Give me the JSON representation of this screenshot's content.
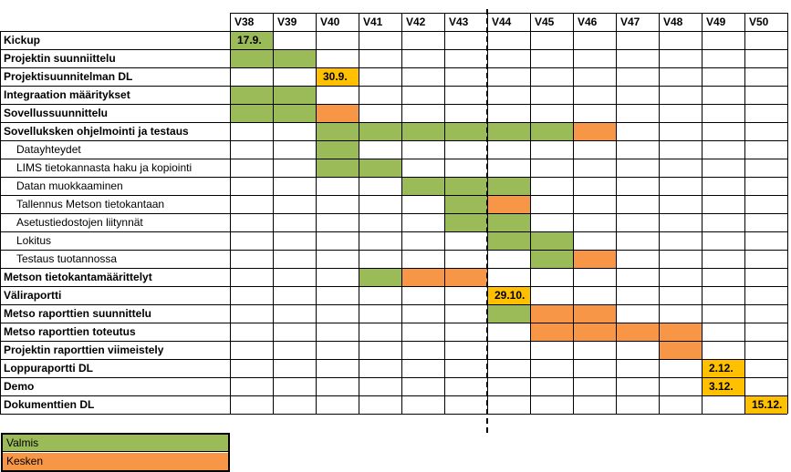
{
  "chart_data": {
    "type": "gantt",
    "weeks": [
      "V38",
      "V39",
      "V40",
      "V41",
      "V42",
      "V43",
      "V44",
      "V45",
      "V46",
      "V47",
      "V48",
      "V49",
      "V50"
    ],
    "tasks": [
      {
        "name": "Kickup",
        "bold": true,
        "done": [],
        "in_progress": [],
        "milestone": {
          "week": "V38",
          "label": "17.9.",
          "color": "#9bbb59"
        }
      },
      {
        "name": "Projektin suunniittelu",
        "bold": true,
        "done": [
          "V38",
          "V39"
        ],
        "in_progress": []
      },
      {
        "name": "Projektisuunnitelman DL",
        "bold": true,
        "done": [],
        "in_progress": [],
        "milestone": {
          "week": "V40",
          "label": "30.9.",
          "color": "#ffc000"
        }
      },
      {
        "name": "Integraation määritykset",
        "bold": true,
        "done": [
          "V38",
          "V39"
        ],
        "in_progress": []
      },
      {
        "name": "Sovellussuunnittelu",
        "bold": true,
        "done": [
          "V38",
          "V39"
        ],
        "in_progress": [
          "V40"
        ]
      },
      {
        "name": "Sovelluksken ohjelmointi ja testaus",
        "bold": true,
        "done": [
          "V40",
          "V41",
          "V42",
          "V43",
          "V44",
          "V45"
        ],
        "in_progress": [
          "V46"
        ]
      },
      {
        "name": "Datayhteydet",
        "bold": false,
        "done": [
          "V40"
        ],
        "in_progress": []
      },
      {
        "name": "LIMS tietokannasta haku ja kopiointi",
        "bold": false,
        "done": [
          "V40",
          "V41"
        ],
        "in_progress": []
      },
      {
        "name": "Datan muokkaaminen",
        "bold": false,
        "done": [
          "V42",
          "V43",
          "V44"
        ],
        "in_progress": []
      },
      {
        "name": "Tallennus Metson tietokantaan",
        "bold": false,
        "done": [
          "V43"
        ],
        "in_progress": [
          "V44"
        ]
      },
      {
        "name": "Asetustiedostojen liitynnät",
        "bold": false,
        "done": [
          "V43",
          "V44"
        ],
        "in_progress": []
      },
      {
        "name": "Lokitus",
        "bold": false,
        "done": [
          "V44",
          "V45"
        ],
        "in_progress": []
      },
      {
        "name": "Testaus tuotannossa",
        "bold": false,
        "done": [
          "V45"
        ],
        "in_progress": [
          "V46"
        ]
      },
      {
        "name": "Metson tietokantamäärittelyt",
        "bold": true,
        "done": [
          "V41"
        ],
        "in_progress": [
          "V42",
          "V43"
        ]
      },
      {
        "name": "Väliraportti",
        "bold": true,
        "done": [],
        "in_progress": [],
        "milestone": {
          "week": "V44",
          "label": "29.10.",
          "color": "#ffc000"
        }
      },
      {
        "name": "Metso raporttien suunnittelu",
        "bold": true,
        "done": [
          "V44"
        ],
        "in_progress": [
          "V45",
          "V46"
        ]
      },
      {
        "name": "Metso raporttien toteutus",
        "bold": true,
        "done": [],
        "in_progress": [
          "V45",
          "V46",
          "V47",
          "V48"
        ]
      },
      {
        "name": "Projektin raporttien viimeistely",
        "bold": true,
        "done": [],
        "in_progress": [
          "V48"
        ]
      },
      {
        "name": "Loppuraportti DL",
        "bold": true,
        "done": [],
        "in_progress": [],
        "milestone": {
          "week": "V49",
          "label": "2.12.",
          "color": "#ffc000"
        }
      },
      {
        "name": "Demo",
        "bold": true,
        "done": [],
        "in_progress": [],
        "milestone": {
          "week": "V49",
          "label": "3.12.",
          "color": "#ffc000"
        }
      },
      {
        "name": "Dokumenttien DL",
        "bold": true,
        "done": [],
        "in_progress": [],
        "milestone": {
          "week": "V50",
          "label": "15.12.",
          "color": "#ffc000"
        }
      }
    ],
    "legend": [
      {
        "label": "Valmis",
        "color": "#9bbb59"
      },
      {
        "label": "Kesken",
        "color": "#f79646"
      }
    ],
    "current_week_marker": "between V43 and V44",
    "colors": {
      "done": "#9bbb59",
      "in_progress": "#f79646",
      "milestone": "#ffc000",
      "grid": "#000000"
    }
  }
}
